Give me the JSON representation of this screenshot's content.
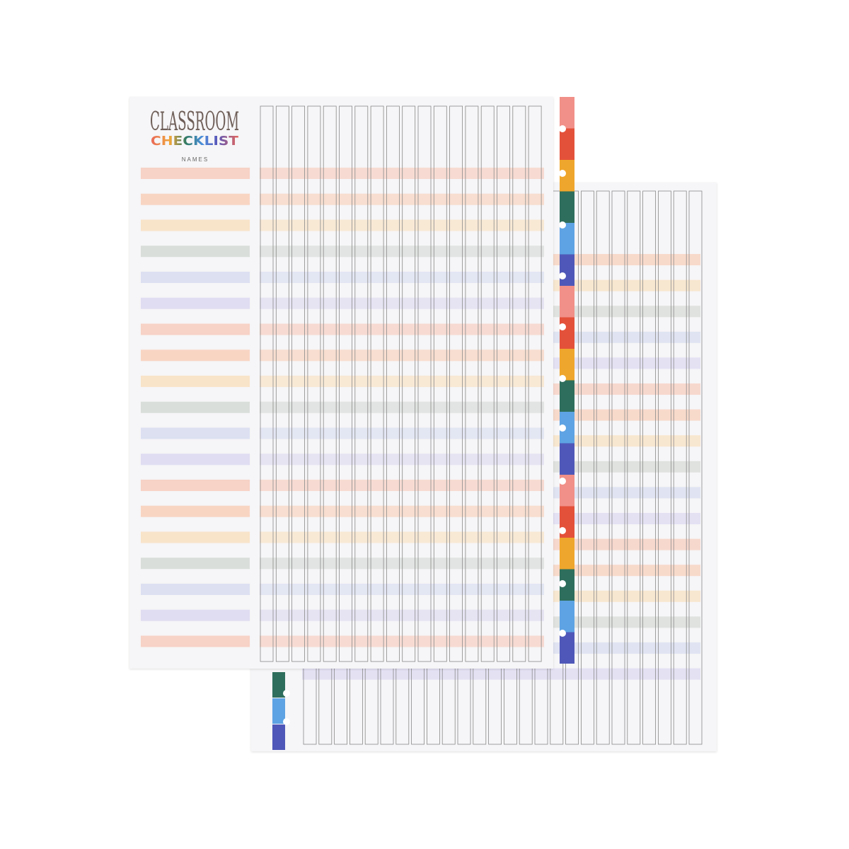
{
  "header": {
    "title": "CLASSROOM",
    "subtitle": "CHECKLIST",
    "column_label": "NAMES"
  }
}
